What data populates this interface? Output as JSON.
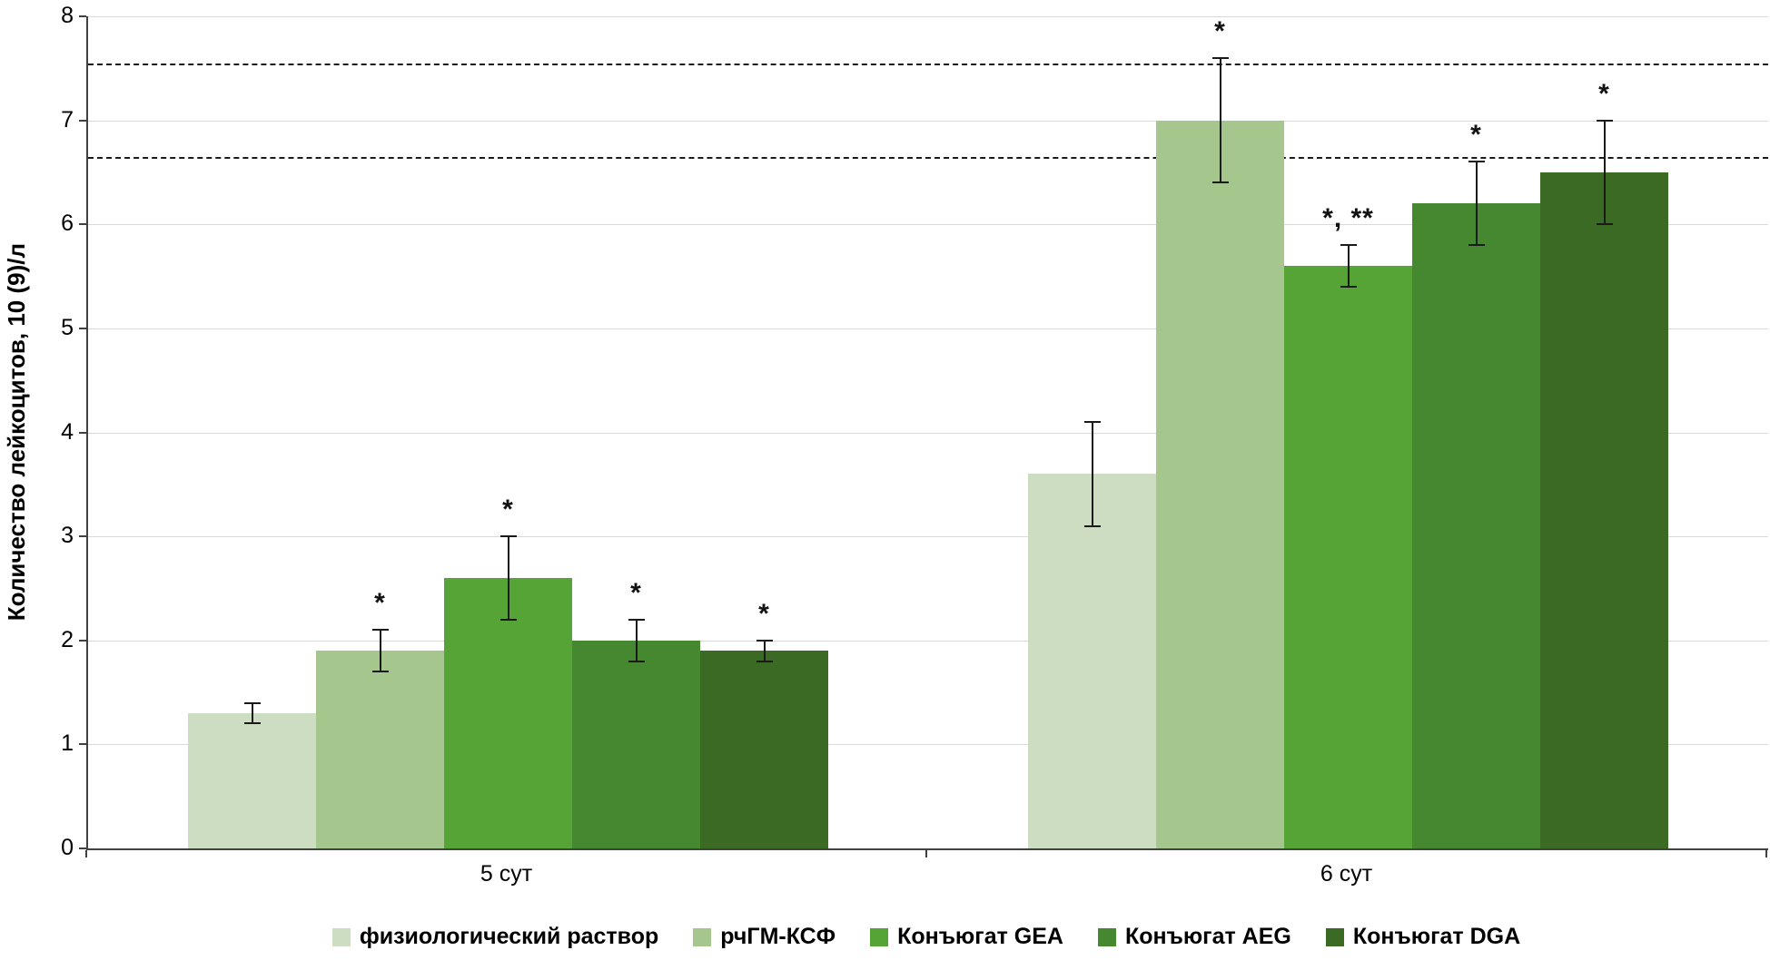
{
  "chart_data": {
    "type": "bar",
    "title": "",
    "xlabel": "",
    "ylabel": "Количество лейкоцитов, 10 (9)/л",
    "categories": [
      "5 сут",
      "6 сут"
    ],
    "series": [
      {
        "name": "физиологический раствор",
        "color": "#cdddc1",
        "values": [
          1.3,
          3.6
        ],
        "errors": [
          0.1,
          0.5
        ],
        "annotations": [
          "",
          ""
        ]
      },
      {
        "name": "рчГМ-КСФ",
        "color": "#a5c68d",
        "values": [
          1.9,
          7.0
        ],
        "errors": [
          0.2,
          0.6
        ],
        "annotations": [
          "*",
          "*"
        ]
      },
      {
        "name": "Конъюгат GEA",
        "color": "#56a436",
        "values": [
          2.6,
          5.6
        ],
        "errors": [
          0.4,
          0.2
        ],
        "annotations": [
          "*",
          "*, **"
        ]
      },
      {
        "name": "Конъюгат AEG",
        "color": "#45882f",
        "values": [
          2.0,
          6.2
        ],
        "errors": [
          0.2,
          0.4
        ],
        "annotations": [
          "*",
          "*"
        ]
      },
      {
        "name": "Конъюгат DGA",
        "color": "#3a6a23",
        "values": [
          1.9,
          6.5
        ],
        "errors": [
          0.1,
          0.5
        ],
        "annotations": [
          "*",
          "*"
        ]
      }
    ],
    "ylim": [
      0,
      8
    ],
    "yticks": [
      0,
      1,
      2,
      3,
      4,
      5,
      6,
      7,
      8
    ],
    "grid": true,
    "legend_position": "bottom",
    "reference_lines": [
      {
        "y": 7.55,
        "style": "dashed",
        "color": "#1a1a1a"
      },
      {
        "y": 6.65,
        "style": "dashed",
        "color": "#1a1a1a"
      }
    ]
  }
}
